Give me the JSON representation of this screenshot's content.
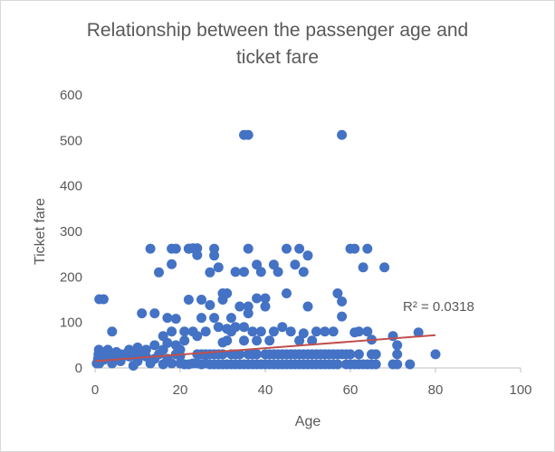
{
  "chart_data": {
    "type": "scatter",
    "title": "Relationship between the passenger age and\nticket fare",
    "xlabel": "Age",
    "ylabel": "Ticket fare",
    "xlim": [
      0,
      100
    ],
    "ylim": [
      0,
      600
    ],
    "x_ticks": [
      0,
      20,
      40,
      60,
      80,
      100
    ],
    "y_ticks": [
      0,
      100,
      200,
      300,
      400,
      500,
      600
    ],
    "grid": "none",
    "legend": "none",
    "r_squared_label": "R² = 0.0318",
    "colors": {
      "points": "#4472c4",
      "trendline": "#c0504d",
      "axis": "#bfbfbf",
      "text": "#595959"
    },
    "trendline": {
      "x": [
        0,
        80
      ],
      "y": [
        15,
        72
      ]
    },
    "series": [
      {
        "points": [
          [
            0.4,
            10
          ],
          [
            0.7,
            20
          ],
          [
            0.8,
            30
          ],
          [
            0.9,
            40
          ],
          [
            1,
            151
          ],
          [
            2,
            151
          ],
          [
            1,
            10
          ],
          [
            2,
            18
          ],
          [
            2,
            30
          ],
          [
            3,
            25
          ],
          [
            3,
            40
          ],
          [
            4,
            80
          ],
          [
            4,
            10
          ],
          [
            5,
            20
          ],
          [
            5,
            35
          ],
          [
            6,
            15
          ],
          [
            6,
            30
          ],
          [
            7,
            30
          ],
          [
            8,
            25
          ],
          [
            8,
            40
          ],
          [
            9,
            5
          ],
          [
            9,
            30
          ],
          [
            10,
            45
          ],
          [
            10,
            15
          ],
          [
            11,
            30
          ],
          [
            11,
            120
          ],
          [
            12,
            25
          ],
          [
            12,
            40
          ],
          [
            13,
            10
          ],
          [
            13,
            262
          ],
          [
            14,
            50
          ],
          [
            14,
            20
          ],
          [
            14,
            120
          ],
          [
            15,
            30
          ],
          [
            15,
            210
          ],
          [
            16,
            8
          ],
          [
            16,
            70
          ],
          [
            16,
            40
          ],
          [
            17,
            20
          ],
          [
            17,
            110
          ],
          [
            17,
            55
          ],
          [
            18,
            228
          ],
          [
            18,
            262
          ],
          [
            18,
            10
          ],
          [
            18,
            80
          ],
          [
            19,
            30
          ],
          [
            19,
            108
          ],
          [
            19,
            262
          ],
          [
            19,
            50
          ],
          [
            20,
            10
          ],
          [
            20,
            26
          ],
          [
            20,
            40
          ],
          [
            21,
            8
          ],
          [
            21,
            60
          ],
          [
            21,
            80
          ],
          [
            22,
            8
          ],
          [
            22,
            150
          ],
          [
            22,
            262
          ],
          [
            22,
            262
          ],
          [
            23,
            10
          ],
          [
            23,
            80
          ],
          [
            23,
            263
          ],
          [
            24,
            10
          ],
          [
            24,
            30
          ],
          [
            24,
            70
          ],
          [
            24,
            248
          ],
          [
            24,
            263
          ],
          [
            25,
            8
          ],
          [
            25,
            30
          ],
          [
            25,
            150
          ],
          [
            25,
            110
          ],
          [
            26,
            10
          ],
          [
            26,
            30
          ],
          [
            26,
            80
          ],
          [
            27,
            8
          ],
          [
            27,
            30
          ],
          [
            27,
            138
          ],
          [
            27,
            210
          ],
          [
            28,
            8
          ],
          [
            28,
            30
          ],
          [
            28,
            110
          ],
          [
            28,
            247
          ],
          [
            28,
            262
          ],
          [
            29,
            8
          ],
          [
            29,
            30
          ],
          [
            29,
            90
          ],
          [
            29,
            221
          ],
          [
            30,
            8
          ],
          [
            30,
            30
          ],
          [
            30,
            56
          ],
          [
            30,
            164
          ],
          [
            30,
            150
          ],
          [
            31,
            8
          ],
          [
            31,
            60
          ],
          [
            31,
            86
          ],
          [
            31,
            164
          ],
          [
            32,
            8
          ],
          [
            32,
            30
          ],
          [
            32,
            80
          ],
          [
            32,
            110
          ],
          [
            33,
            8
          ],
          [
            33,
            30
          ],
          [
            33,
            90
          ],
          [
            33,
            211
          ],
          [
            34,
            8
          ],
          [
            34,
            30
          ],
          [
            34,
            135
          ],
          [
            35,
            8
          ],
          [
            35,
            512
          ],
          [
            35,
            60
          ],
          [
            35,
            90
          ],
          [
            35,
            211
          ],
          [
            36,
            512
          ],
          [
            36,
            8
          ],
          [
            36,
            30
          ],
          [
            36,
            120
          ],
          [
            36,
            262
          ],
          [
            36,
            135
          ],
          [
            37,
            8
          ],
          [
            37,
            30
          ],
          [
            37,
            80
          ],
          [
            38,
            8
          ],
          [
            38,
            30
          ],
          [
            38,
            60
          ],
          [
            38,
            227
          ],
          [
            38,
            153
          ],
          [
            39,
            8
          ],
          [
            39,
            80
          ],
          [
            39,
            211
          ],
          [
            40,
            8
          ],
          [
            40,
            30
          ],
          [
            40,
            153
          ],
          [
            40,
            135
          ],
          [
            41,
            8
          ],
          [
            41,
            30
          ],
          [
            41,
            60
          ],
          [
            42,
            8
          ],
          [
            42,
            30
          ],
          [
            42,
            227
          ],
          [
            42,
            80
          ],
          [
            43,
            8
          ],
          [
            43,
            211
          ],
          [
            43,
            30
          ],
          [
            44,
            8
          ],
          [
            44,
            30
          ],
          [
            44,
            90
          ],
          [
            45,
            8
          ],
          [
            45,
            30
          ],
          [
            45,
            262
          ],
          [
            45,
            164
          ],
          [
            46,
            8
          ],
          [
            46,
            30
          ],
          [
            46,
            80
          ],
          [
            47,
            8
          ],
          [
            47,
            30
          ],
          [
            47,
            227
          ],
          [
            48,
            8
          ],
          [
            48,
            30
          ],
          [
            48,
            262
          ],
          [
            48,
            60
          ],
          [
            49,
            8
          ],
          [
            49,
            30
          ],
          [
            49,
            211
          ],
          [
            49,
            76
          ],
          [
            50,
            8
          ],
          [
            50,
            30
          ],
          [
            50,
            247
          ],
          [
            50,
            135
          ],
          [
            51,
            8
          ],
          [
            51,
            30
          ],
          [
            51,
            60
          ],
          [
            52,
            8
          ],
          [
            52,
            30
          ],
          [
            52,
            80
          ],
          [
            53,
            8
          ],
          [
            53,
            30
          ],
          [
            54,
            8
          ],
          [
            54,
            30
          ],
          [
            54,
            80
          ],
          [
            55,
            8
          ],
          [
            55,
            30
          ],
          [
            56,
            8
          ],
          [
            56,
            30
          ],
          [
            56,
            80
          ],
          [
            57,
            8
          ],
          [
            57,
            30
          ],
          [
            57,
            164
          ],
          [
            58,
            512
          ],
          [
            58,
            30
          ],
          [
            58,
            146
          ],
          [
            58,
            113
          ],
          [
            59,
            8
          ],
          [
            59,
            30
          ],
          [
            60,
            8
          ],
          [
            60,
            262
          ],
          [
            60,
            30
          ],
          [
            61,
            8
          ],
          [
            61,
            262
          ],
          [
            61,
            78
          ],
          [
            62,
            8
          ],
          [
            62,
            30
          ],
          [
            62,
            80
          ],
          [
            63,
            8
          ],
          [
            63,
            221
          ],
          [
            64,
            8
          ],
          [
            64,
            262
          ],
          [
            64,
            80
          ],
          [
            65,
            8
          ],
          [
            65,
            30
          ],
          [
            65,
            62
          ],
          [
            66,
            8
          ],
          [
            66,
            30
          ],
          [
            68,
            221
          ],
          [
            70,
            8
          ],
          [
            70,
            70
          ],
          [
            71,
            50
          ],
          [
            71,
            30
          ],
          [
            71,
            8
          ],
          [
            74,
            8
          ],
          [
            76,
            78
          ],
          [
            80,
            30
          ]
        ]
      }
    ]
  }
}
